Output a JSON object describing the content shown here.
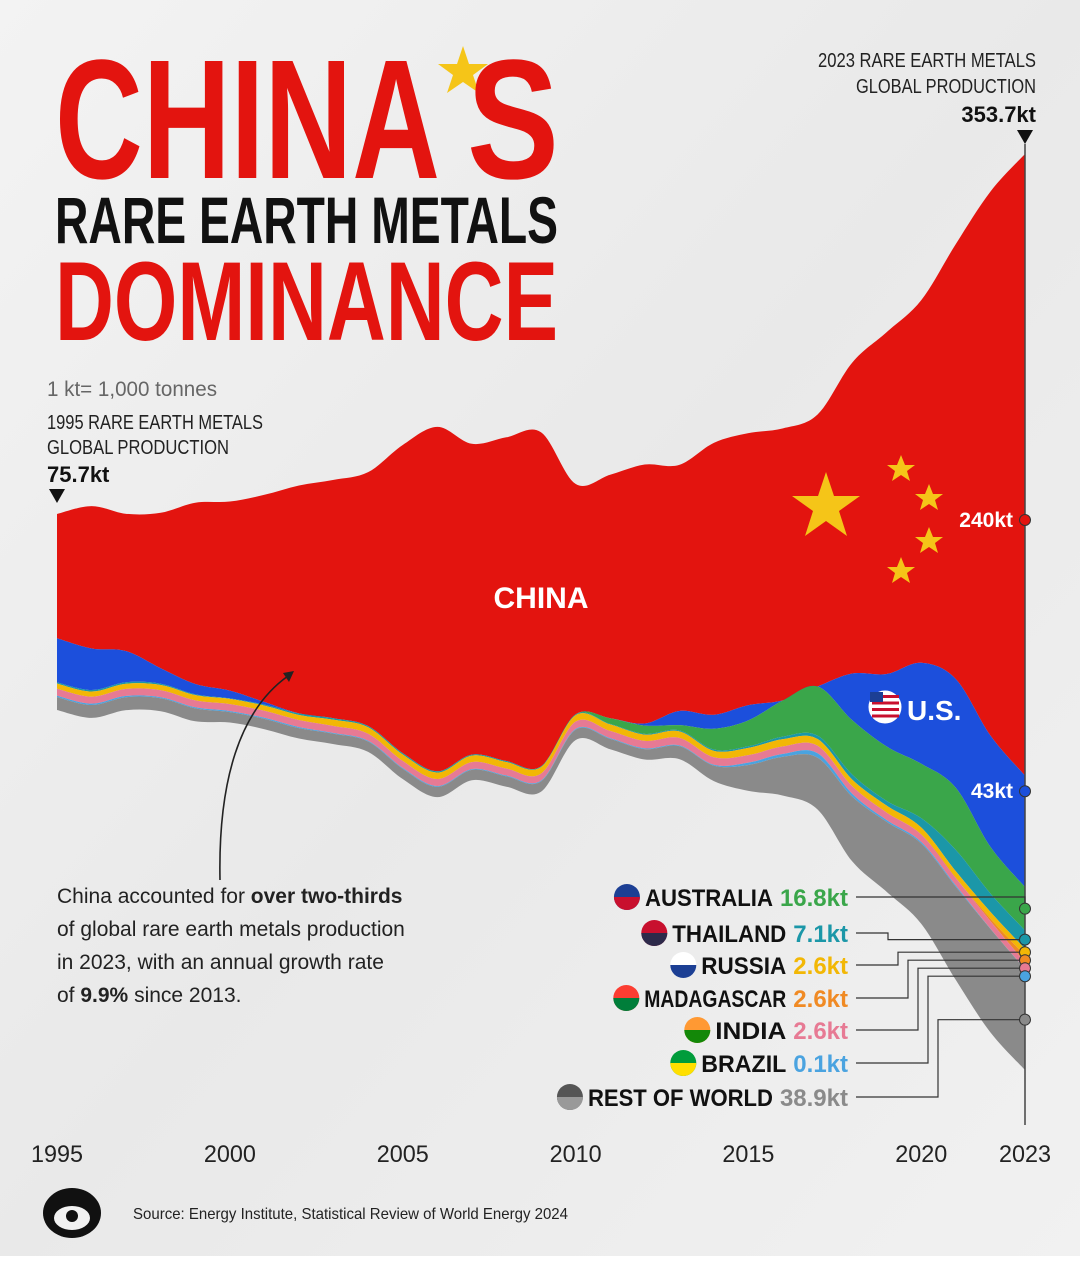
{
  "chart_data": {
    "type": "area",
    "title": {
      "line1_start": "CHINA",
      "line1_end": "S",
      "line2": "RARE EARTH METALS",
      "line3": "DOMINANCE"
    },
    "unit_note": "1 kt= 1,000 tonnes",
    "start_annotation": {
      "lines": [
        "1995 RARE EARTH METALS",
        "GLOBAL PRODUCTION"
      ],
      "value": 75.7,
      "label": "75.7kt"
    },
    "end_annotation": {
      "lines": [
        "2023 RARE EARTH METALS",
        "GLOBAL PRODUCTION"
      ],
      "value": 353.7,
      "label": "353.7kt"
    },
    "note": [
      [
        {
          "text": "China accounted for ",
          "bold": false
        },
        {
          "text": "over two-thirds",
          "bold": true
        }
      ],
      [
        {
          "text": "of global rare earth metals production",
          "bold": false
        }
      ],
      [
        {
          "text": "in 2023, with an annual growth rate",
          "bold": false
        }
      ],
      [
        {
          "text": "of ",
          "bold": false
        },
        {
          "text": "9.9%",
          "bold": true
        },
        {
          "text": " since 2013.",
          "bold": false
        }
      ]
    ],
    "source": "Source: Energy Institute, Statistical Review of World Energy 2024",
    "x": [
      1995,
      1996,
      1997,
      1998,
      1999,
      2000,
      2001,
      2002,
      2003,
      2004,
      2005,
      2006,
      2007,
      2008,
      2009,
      2010,
      2011,
      2012,
      2013,
      2014,
      2015,
      2016,
      2017,
      2018,
      2019,
      2020,
      2021,
      2022,
      2023
    ],
    "xlim": [
      1995,
      2023
    ],
    "xticks": [
      1995,
      2000,
      2005,
      2010,
      2015,
      2020,
      2023
    ],
    "series": [
      {
        "name": "CHINA",
        "color": "#e3140f",
        "values": [
          48,
          55,
          53,
          60,
          70,
          73,
          80,
          88,
          92,
          98,
          119,
          133,
          120,
          125,
          129,
          89,
          94,
          100,
          95,
          105,
          105,
          105,
          105,
          120,
          132,
          140,
          168,
          210,
          240
        ],
        "value_labels": [
          null,
          null,
          null,
          null,
          null,
          null,
          null,
          null,
          null,
          null,
          null,
          null,
          null,
          null,
          null,
          null,
          null,
          null,
          null,
          null,
          null,
          null,
          null,
          null,
          null,
          null,
          null,
          null,
          "240kt"
        ]
      },
      {
        "name": "U.S.",
        "color": "#1c4fdc",
        "values": [
          17,
          16,
          12,
          6,
          4,
          3,
          1,
          0,
          0,
          0,
          0,
          0,
          0,
          0,
          0,
          0,
          0,
          0.8,
          5.5,
          5.4,
          5.9,
          0,
          0,
          18,
          28,
          39,
          42,
          43,
          43
        ],
        "value_labels": [
          null,
          null,
          null,
          null,
          null,
          null,
          null,
          null,
          null,
          null,
          null,
          null,
          null,
          null,
          null,
          null,
          null,
          null,
          null,
          null,
          null,
          null,
          null,
          null,
          null,
          null,
          null,
          null,
          "43kt"
        ]
      },
      {
        "name": "AUSTRALIA",
        "color": "#3aa64a",
        "values": [
          0,
          0,
          0,
          0,
          0,
          0,
          0,
          0,
          0,
          0,
          0,
          0,
          0,
          0,
          0,
          0,
          2.2,
          3.2,
          2,
          8,
          10,
          14,
          19,
          21,
          21,
          21,
          24,
          18,
          16.8
        ],
        "value_labels": [
          null,
          null,
          null,
          null,
          null,
          null,
          null,
          null,
          null,
          null,
          null,
          null,
          null,
          null,
          null,
          null,
          null,
          null,
          null,
          null,
          null,
          null,
          null,
          null,
          null,
          null,
          null,
          null,
          "16.8kt"
        ]
      },
      {
        "name": "THAILAND",
        "color": "#1b97a8",
        "values": [
          0.5,
          0.6,
          0.6,
          0.5,
          0.3,
          0.2,
          0.4,
          0.6,
          0.6,
          0.5,
          0.5,
          0.5,
          0.4,
          0.4,
          0.3,
          0.3,
          0.2,
          0.3,
          0.4,
          0.5,
          0.6,
          1.0,
          1.3,
          1.9,
          1.8,
          3.6,
          8.2,
          7.1,
          7.1
        ],
        "value_labels": [
          null,
          null,
          null,
          null,
          null,
          null,
          null,
          null,
          null,
          null,
          null,
          null,
          null,
          null,
          null,
          null,
          null,
          null,
          null,
          null,
          null,
          null,
          null,
          null,
          null,
          null,
          null,
          null,
          "7.1kt"
        ]
      },
      {
        "name": "RUSSIA",
        "color": "#f2b705",
        "values": [
          2,
          2,
          2,
          2,
          2,
          2,
          2,
          2,
          2.4,
          2.5,
          2.5,
          2.5,
          2.5,
          2.5,
          2.5,
          2.5,
          2.5,
          2.4,
          2.5,
          2.5,
          2.8,
          2.8,
          2.6,
          2.6,
          2.7,
          2.7,
          2.6,
          2.6,
          2.6
        ],
        "value_labels": [
          null,
          null,
          null,
          null,
          null,
          null,
          null,
          null,
          null,
          null,
          null,
          null,
          null,
          null,
          null,
          null,
          null,
          null,
          null,
          null,
          null,
          null,
          null,
          null,
          null,
          null,
          null,
          null,
          "2.6kt"
        ]
      },
      {
        "name": "MADAGASCAR",
        "color": "#f08a24",
        "values": [
          0,
          0,
          0,
          0,
          0,
          0,
          0,
          0,
          0,
          0,
          0,
          0,
          0,
          0,
          0,
          0,
          0,
          0,
          0,
          0,
          0,
          0,
          0,
          0,
          0,
          0,
          0,
          0.96,
          2.6
        ],
        "value_labels": [
          null,
          null,
          null,
          null,
          null,
          null,
          null,
          null,
          null,
          null,
          null,
          null,
          null,
          null,
          null,
          null,
          null,
          null,
          null,
          null,
          null,
          null,
          null,
          null,
          null,
          null,
          null,
          null,
          "2.6kt"
        ]
      },
      {
        "name": "INDIA",
        "color": "#e77a94",
        "values": [
          2.7,
          2.7,
          2.7,
          2.7,
          2.7,
          2.7,
          2.7,
          2.7,
          2.7,
          2.7,
          2.7,
          2.7,
          2.7,
          2.7,
          2.7,
          2.8,
          2.8,
          2.9,
          2.9,
          2.9,
          2.9,
          2.9,
          2.9,
          2.9,
          2.9,
          2.9,
          2.9,
          2.9,
          2.6
        ],
        "value_labels": [
          null,
          null,
          null,
          null,
          null,
          null,
          null,
          null,
          null,
          null,
          null,
          null,
          null,
          null,
          null,
          null,
          null,
          null,
          null,
          null,
          null,
          null,
          null,
          null,
          null,
          null,
          null,
          null,
          "2.6kt"
        ]
      },
      {
        "name": "BRAZIL",
        "color": "#4aa3e0",
        "values": [
          0.5,
          0.5,
          0.5,
          0.4,
          0.4,
          0.4,
          0.4,
          0.4,
          0.3,
          0.3,
          0.3,
          0.3,
          0.3,
          0.3,
          0.3,
          0.3,
          0.3,
          0.3,
          0.3,
          0.3,
          0.9,
          1.1,
          1.7,
          1.1,
          0.7,
          0.6,
          0.5,
          0.1,
          0.1
        ],
        "value_labels": [
          null,
          null,
          null,
          null,
          null,
          null,
          null,
          null,
          null,
          null,
          null,
          null,
          null,
          null,
          null,
          null,
          null,
          null,
          null,
          null,
          null,
          null,
          null,
          null,
          null,
          null,
          null,
          null,
          "0.1kt"
        ]
      },
      {
        "name": "REST OF WORLD",
        "color": "#8a8a8a",
        "values": [
          5,
          5,
          5,
          5,
          5,
          4,
          4,
          4,
          4,
          4,
          4,
          4,
          4,
          4,
          4,
          4,
          4,
          4,
          5,
          6,
          10,
          15,
          20,
          25,
          27,
          31,
          36,
          40,
          38.9
        ],
        "value_labels": [
          null,
          null,
          null,
          null,
          null,
          null,
          null,
          null,
          null,
          null,
          null,
          null,
          null,
          null,
          null,
          null,
          null,
          null,
          null,
          null,
          null,
          null,
          null,
          null,
          null,
          null,
          null,
          null,
          "38.9kt"
        ]
      }
    ]
  }
}
